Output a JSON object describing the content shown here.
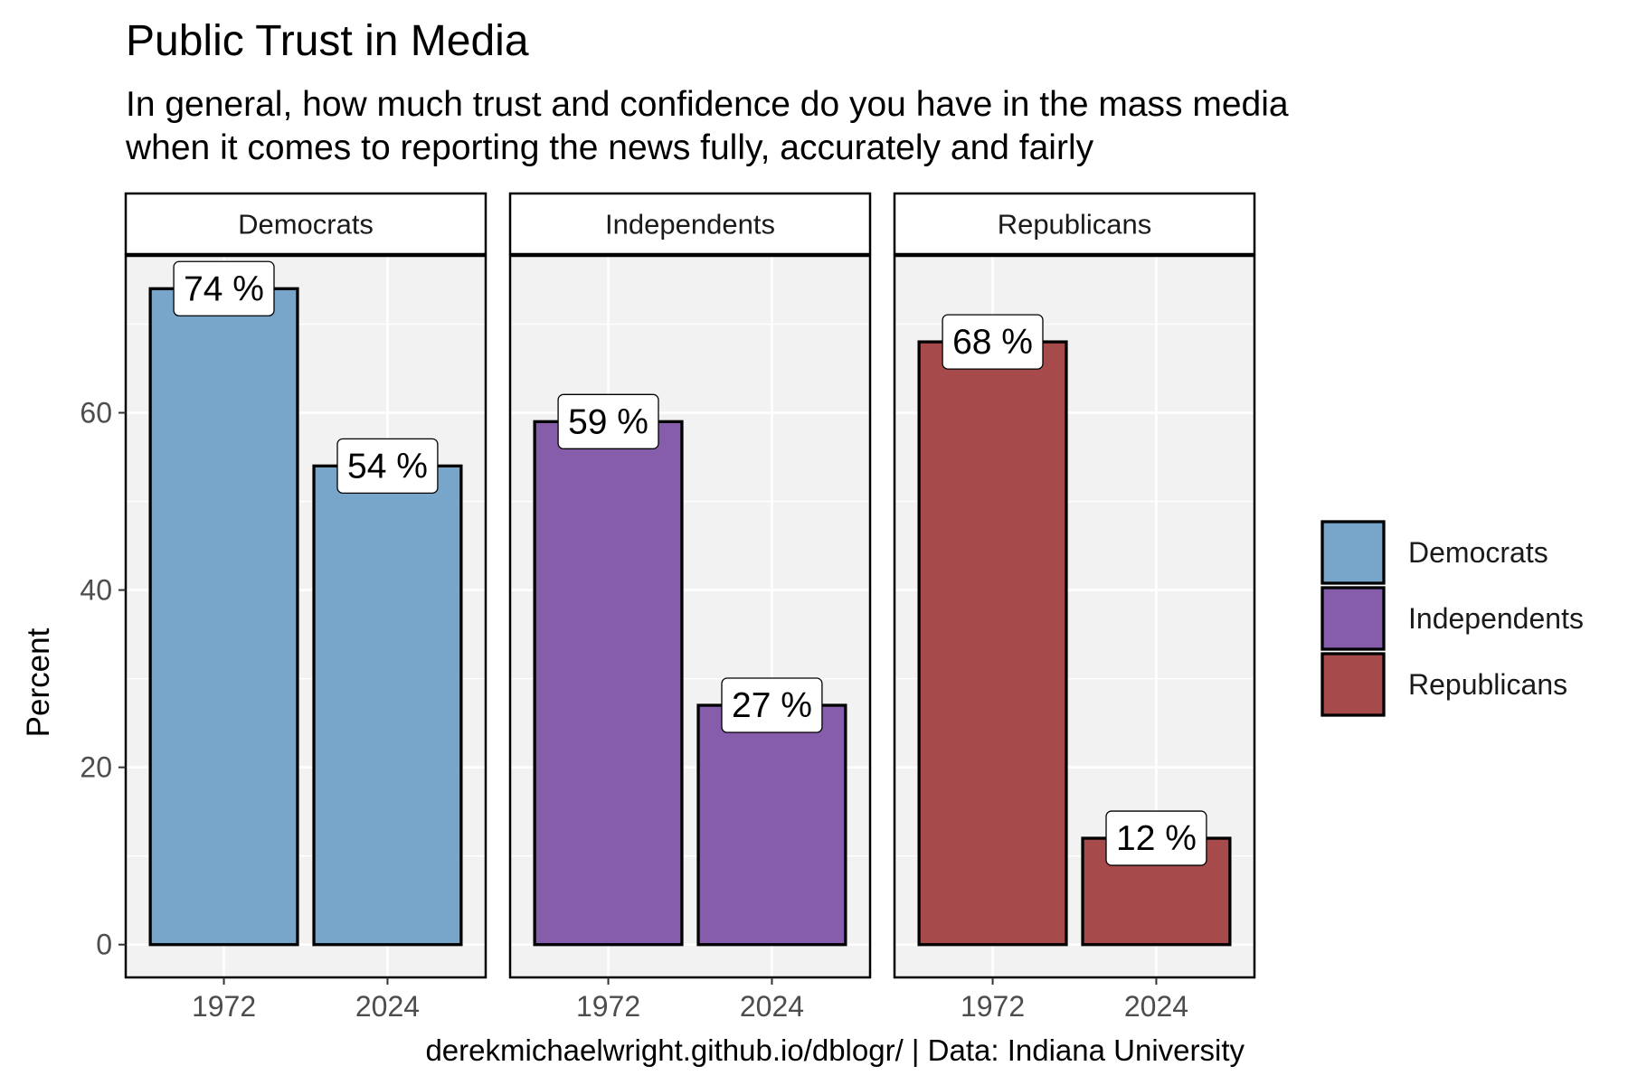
{
  "chart_data": {
    "type": "bar",
    "title": "Public Trust in Media",
    "subtitle_lines": [
      "In general, how much trust and confidence do you have in the mass media",
      "when it comes to reporting the news fully, accurately and fairly"
    ],
    "ylabel": "Percent",
    "caption": "derekmichaelwright.github.io/dblogr/ | Data: Indiana University",
    "ylim": [
      -3.7,
      77.7
    ],
    "yticks": [
      0,
      20,
      40,
      60
    ],
    "categories": [
      "1972",
      "2024"
    ],
    "label_suffix": " %",
    "panels": [
      {
        "name": "Democrats",
        "color": "#78A6CA",
        "values": [
          74,
          54
        ]
      },
      {
        "name": "Independents",
        "color": "#865DAB",
        "values": [
          59,
          27
        ]
      },
      {
        "name": "Republicans",
        "color": "#A74A4B",
        "values": [
          68,
          12
        ]
      }
    ],
    "legend": {
      "position": "right",
      "entries": [
        {
          "name": "Democrats",
          "color": "#78A6CA"
        },
        {
          "name": "Independents",
          "color": "#865DAB"
        },
        {
          "name": "Republicans",
          "color": "#A74A4B"
        }
      ]
    },
    "grid": true
  }
}
